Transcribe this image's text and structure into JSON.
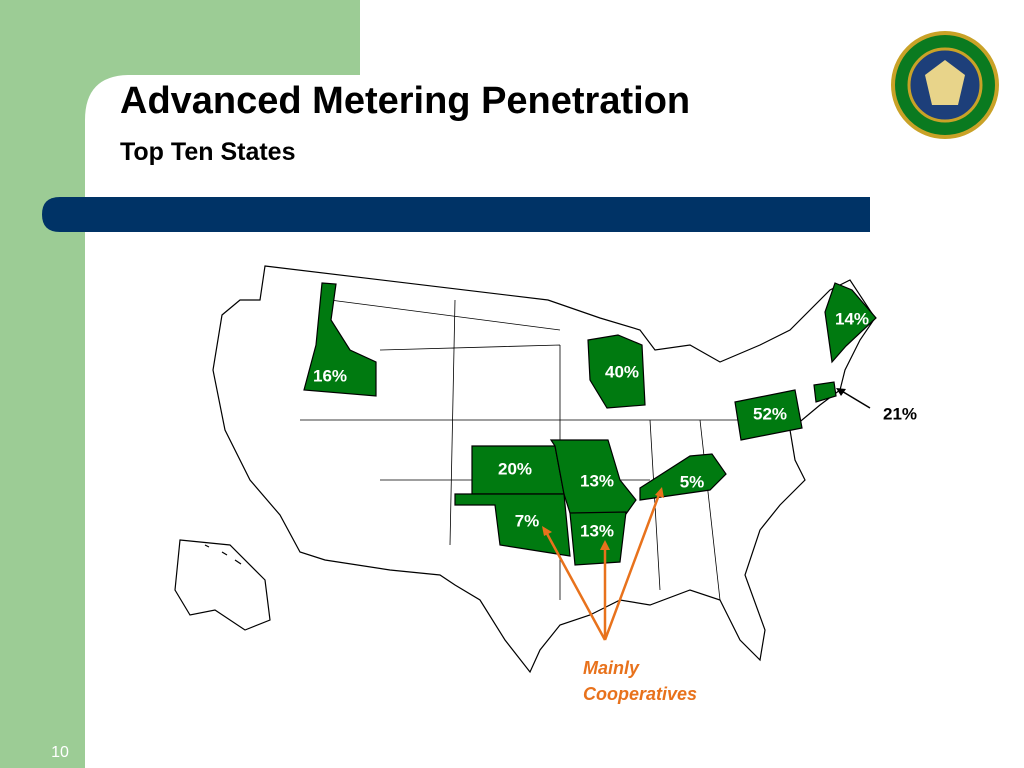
{
  "header": {
    "title": "Advanced Metering Penetration",
    "subtitle": "Top Ten States"
  },
  "map": {
    "labels": [
      "16%",
      "40%",
      "14%",
      "52%",
      "21%",
      "20%",
      "13%",
      "5%",
      "7%",
      "13%"
    ],
    "annotation": [
      "Mainly",
      "Cooperatives"
    ]
  },
  "footer": {
    "page": "10"
  }
}
